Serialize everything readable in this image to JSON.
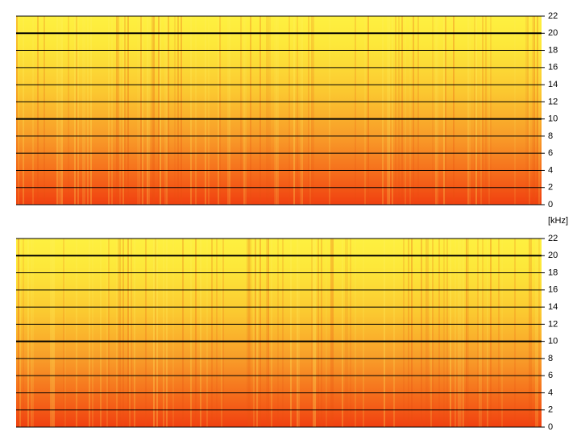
{
  "chart_data": [
    {
      "type": "spectrogram",
      "ylabel": "[kHz]",
      "ylim": [
        0,
        22
      ],
      "yticks": [
        0,
        2,
        4,
        6,
        8,
        10,
        12,
        14,
        16,
        18,
        20,
        22
      ],
      "grid": true,
      "bold_gridlines": [
        10,
        20
      ]
    },
    {
      "type": "spectrogram",
      "ylim": [
        0,
        22
      ],
      "yticks": [
        0,
        2,
        4,
        6,
        8,
        10,
        12,
        14,
        16,
        18,
        20,
        22
      ],
      "grid": true,
      "bold_gridlines": [
        10,
        20
      ]
    }
  ]
}
